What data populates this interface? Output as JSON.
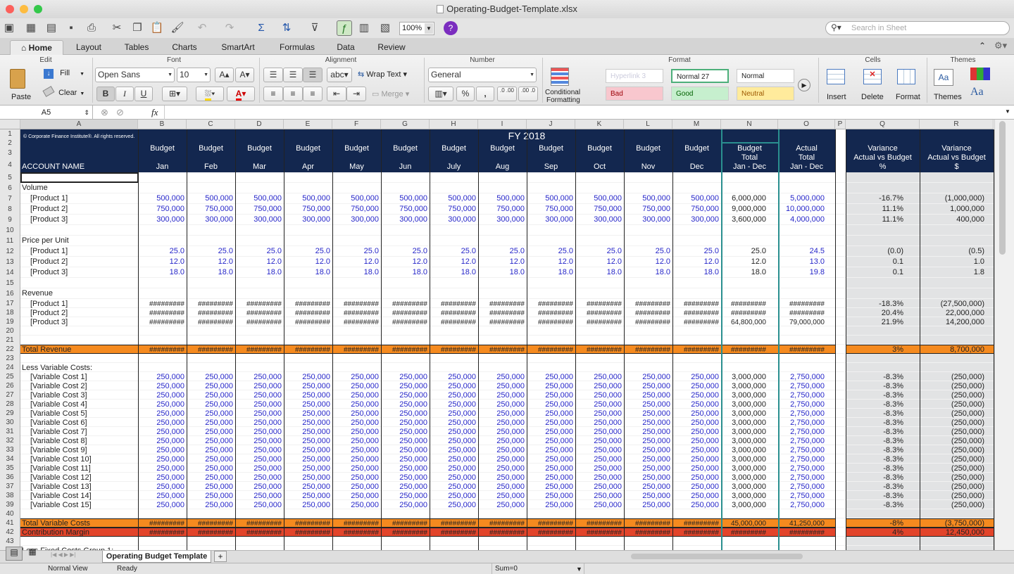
{
  "window": {
    "title": "Operating-Budget-Template.xlsx"
  },
  "toolbar": {
    "zoom": "100%",
    "search_placeholder": "Search in Sheet"
  },
  "tabs": [
    "Home",
    "Layout",
    "Tables",
    "Charts",
    "SmartArt",
    "Formulas",
    "Data",
    "Review"
  ],
  "ribbon": {
    "groups": [
      "Edit",
      "Font",
      "Alignment",
      "Number",
      "Format",
      "Cells",
      "Themes"
    ],
    "fill": "Fill",
    "clear": "Clear",
    "paste": "Paste",
    "font_name": "Open Sans",
    "font_size": "10",
    "bold": "B",
    "italic": "I",
    "underline": "U",
    "wrap_text": "Wrap Text",
    "abc": "abc",
    "merge": "Merge",
    "number_format": "General",
    "percent": "%",
    "comma": ",",
    "inc_dec": ".0 .00",
    "dec_dec": ".00 .0",
    "conditional": "Conditional",
    "formatting": "Formatting",
    "styles": {
      "hyperlink": "Hyperlink 3",
      "normal27": "Normal 27",
      "normal": "Normal",
      "bad": "Bad",
      "good": "Good",
      "neutral": "Neutral"
    },
    "insert": "Insert",
    "delete": "Delete",
    "format": "Format",
    "themes": "Themes",
    "aa": "Aa",
    "aa_small": "Aa"
  },
  "formula_bar": {
    "cell": "A5",
    "fx": "fx",
    "content": ""
  },
  "columns": [
    "A",
    "B",
    "C",
    "D",
    "E",
    "F",
    "G",
    "H",
    "I",
    "J",
    "K",
    "L",
    "M",
    "N",
    "O",
    "P",
    "Q",
    "R"
  ],
  "header": {
    "copyright": "© Corporate Finance Institute®. All rights reserved.",
    "fy": "FY 2018",
    "budget": "Budget",
    "months": [
      "Jan",
      "Feb",
      "Mar",
      "Apr",
      "May",
      "Jun",
      "July",
      "Aug",
      "Sep",
      "Oct",
      "Nov",
      "Dec"
    ],
    "account_name": "ACCOUNT NAME",
    "budget_total": [
      "Budget",
      "Total",
      "Jan - Dec"
    ],
    "actual_total": [
      "Actual",
      "Total",
      "Jan - Dec"
    ],
    "variance_pct": [
      "Variance",
      "Actual vs Budget",
      "%"
    ],
    "variance_usd": [
      "Variance",
      "Actual vs Budget",
      "$"
    ]
  },
  "hashes": "#########",
  "rows": [
    {
      "num": "5"
    },
    {
      "num": "6",
      "label": "Volume",
      "indent": false
    },
    {
      "num": "7",
      "label": "[Product 1]",
      "indent": true,
      "month": "500,000",
      "n": "6,000,000",
      "o": "5,000,000",
      "q": "-16.7%",
      "r": "(1,000,000)"
    },
    {
      "num": "8",
      "label": "[Product 2]",
      "indent": true,
      "month": "750,000",
      "n": "9,000,000",
      "o": "10,000,000",
      "q": "11.1%",
      "r": "1,000,000"
    },
    {
      "num": "9",
      "label": "[Product 3]",
      "indent": true,
      "month": "300,000",
      "n": "3,600,000",
      "o": "4,000,000",
      "q": "11.1%",
      "r": "400,000"
    },
    {
      "num": "10"
    },
    {
      "num": "11",
      "label": "Price per Unit",
      "indent": false
    },
    {
      "num": "12",
      "label": "[Product 1]",
      "indent": true,
      "month": "25.0",
      "n": "25.0",
      "o": "24.5",
      "q": "(0.0)",
      "r": "(0.5)"
    },
    {
      "num": "13",
      "label": "[Product 2]",
      "indent": true,
      "month": "12.0",
      "n": "12.0",
      "o": "13.0",
      "q": "0.1",
      "r": "1.0"
    },
    {
      "num": "14",
      "label": "[Product 3]",
      "indent": true,
      "month": "18.0",
      "n": "18.0",
      "o": "19.8",
      "q": "0.1",
      "r": "1.8"
    },
    {
      "num": "15"
    },
    {
      "num": "16",
      "label": "Revenue",
      "indent": false
    },
    {
      "num": "17",
      "label": "[Product 1]",
      "indent": true,
      "month": "#########",
      "n": "#########",
      "o": "#########",
      "q": "-18.3%",
      "r": "(27,500,000)",
      "dark": true
    },
    {
      "num": "18",
      "label": "[Product 2]",
      "indent": true,
      "month": "#########",
      "n": "#########",
      "o": "#########",
      "q": "20.4%",
      "r": "22,000,000",
      "dark": true
    },
    {
      "num": "19",
      "label": "[Product 3]",
      "indent": true,
      "month": "#########",
      "n": "64,800,000",
      "o": "79,000,000",
      "q": "21.9%",
      "r": "14,200,000",
      "dark": true
    },
    {
      "num": "20"
    },
    {
      "num": "21"
    },
    {
      "num": "22",
      "label": "Total Revenue",
      "indent": false,
      "month": "#########",
      "n": "#########",
      "o": "#########",
      "q": "3%",
      "r": "8,700,000",
      "band": "orange"
    },
    {
      "num": "23"
    },
    {
      "num": "24",
      "label": "Less Variable Costs:",
      "indent": false
    },
    {
      "num": "25",
      "label": "[Variable Cost 1]",
      "indent": true,
      "month": "250,000",
      "n": "3,000,000",
      "o": "2,750,000",
      "q": "-8.3%",
      "r": "(250,000)"
    },
    {
      "num": "26",
      "label": "[Variable Cost 2]",
      "indent": true,
      "month": "250,000",
      "n": "3,000,000",
      "o": "2,750,000",
      "q": "-8.3%",
      "r": "(250,000)"
    },
    {
      "num": "27",
      "label": "[Variable Cost 3]",
      "indent": true,
      "month": "250,000",
      "n": "3,000,000",
      "o": "2,750,000",
      "q": "-8.3%",
      "r": "(250,000)"
    },
    {
      "num": "28",
      "label": "[Variable Cost 4]",
      "indent": true,
      "month": "250,000",
      "n": "3,000,000",
      "o": "2,750,000",
      "q": "-8.3%",
      "r": "(250,000)"
    },
    {
      "num": "29",
      "label": "[Variable Cost 5]",
      "indent": true,
      "month": "250,000",
      "n": "3,000,000",
      "o": "2,750,000",
      "q": "-8.3%",
      "r": "(250,000)"
    },
    {
      "num": "30",
      "label": "[Variable Cost 6]",
      "indent": true,
      "month": "250,000",
      "n": "3,000,000",
      "o": "2,750,000",
      "q": "-8.3%",
      "r": "(250,000)"
    },
    {
      "num": "31",
      "label": "[Variable Cost 7]",
      "indent": true,
      "month": "250,000",
      "n": "3,000,000",
      "o": "2,750,000",
      "q": "-8.3%",
      "r": "(250,000)"
    },
    {
      "num": "32",
      "label": "[Variable Cost 8]",
      "indent": true,
      "month": "250,000",
      "n": "3,000,000",
      "o": "2,750,000",
      "q": "-8.3%",
      "r": "(250,000)"
    },
    {
      "num": "33",
      "label": "[Variable Cost 9]",
      "indent": true,
      "month": "250,000",
      "n": "3,000,000",
      "o": "2,750,000",
      "q": "-8.3%",
      "r": "(250,000)"
    },
    {
      "num": "34",
      "label": "[Variable Cost 10]",
      "indent": true,
      "month": "250,000",
      "n": "3,000,000",
      "o": "2,750,000",
      "q": "-8.3%",
      "r": "(250,000)"
    },
    {
      "num": "35",
      "label": "[Variable Cost 11]",
      "indent": true,
      "month": "250,000",
      "n": "3,000,000",
      "o": "2,750,000",
      "q": "-8.3%",
      "r": "(250,000)"
    },
    {
      "num": "36",
      "label": "[Variable Cost 12]",
      "indent": true,
      "month": "250,000",
      "n": "3,000,000",
      "o": "2,750,000",
      "q": "-8.3%",
      "r": "(250,000)"
    },
    {
      "num": "37",
      "label": "[Variable Cost 13]",
      "indent": true,
      "month": "250,000",
      "n": "3,000,000",
      "o": "2,750,000",
      "q": "-8.3%",
      "r": "(250,000)"
    },
    {
      "num": "38",
      "label": "[Variable Cost 14]",
      "indent": true,
      "month": "250,000",
      "n": "3,000,000",
      "o": "2,750,000",
      "q": "-8.3%",
      "r": "(250,000)"
    },
    {
      "num": "39",
      "label": "[Variable Cost 15]",
      "indent": true,
      "month": "250,000",
      "n": "3,000,000",
      "o": "2,750,000",
      "q": "-8.3%",
      "r": "(250,000)"
    },
    {
      "num": "40"
    },
    {
      "num": "41",
      "label": "Total Variable Costs",
      "indent": false,
      "month": "#########",
      "n": "45,000,000",
      "o": "41,250,000",
      "q": "-8%",
      "r": "(3,750,000)",
      "band": "orange"
    },
    {
      "num": "42",
      "label": "Contribution Margin",
      "indent": false,
      "month": "#########",
      "n": "#########",
      "o": "#########",
      "q": "4%",
      "r": "12,450,000",
      "band": "red"
    },
    {
      "num": "43"
    },
    {
      "num": "44",
      "label": "Less Fixed Costs Group 1:",
      "indent": false
    }
  ],
  "sheet": {
    "tab": "Operating Budget Template",
    "add": "+"
  },
  "status": {
    "view": "Normal View",
    "ready": "Ready",
    "sum": "Sum=0"
  },
  "colors": {
    "navy": "#13274f",
    "orange": "#f58a1f",
    "red": "#e2442a",
    "blue": "#2626c9",
    "grey_col": "#e2e3e4"
  }
}
